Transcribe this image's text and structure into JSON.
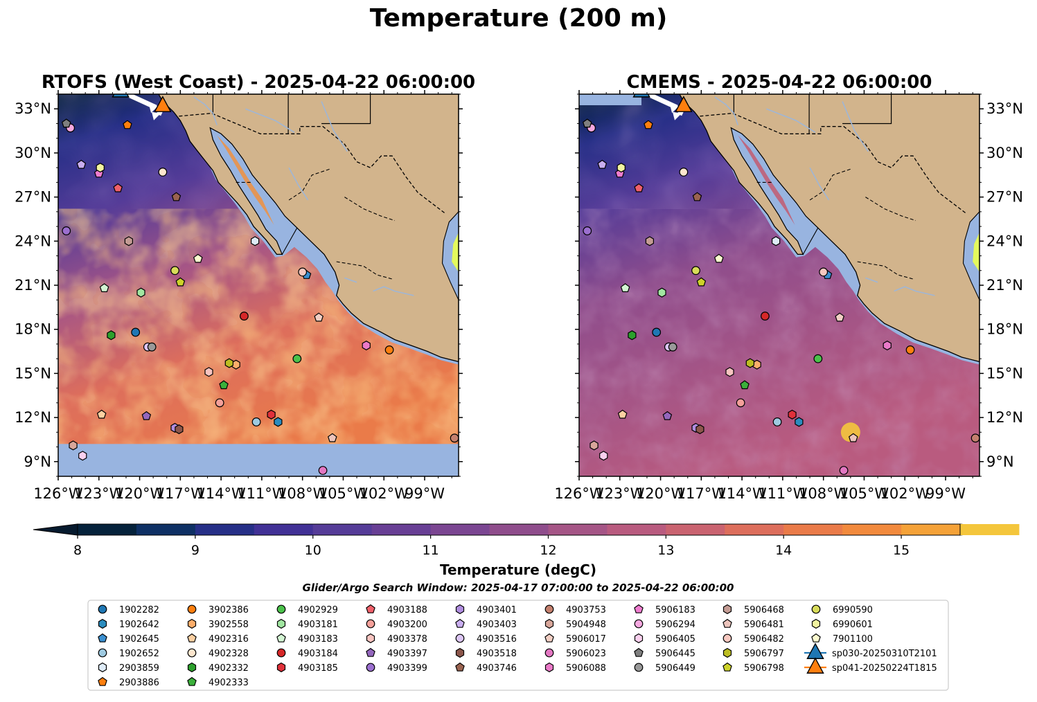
{
  "figure": {
    "title": "Temperature (200 m)",
    "search_window": "Glider/Argo Search Window: 2025-04-17 07:00:00 to 2025-04-22 06:00:00"
  },
  "chart_data": {
    "type": "heatmap",
    "panels": [
      {
        "title": "RTOFS (West Coast) - 2025-04-22 06:00:00",
        "model": "RTOFS",
        "has_no_data_band": true
      },
      {
        "title": "CMEMS - 2025-04-22 06:00:00",
        "model": "CMEMS",
        "has_no_data_band": false
      }
    ],
    "xlim": [
      -126,
      -96.5
    ],
    "ylim": [
      8,
      34
    ],
    "x_ticks": [
      {
        "v": -126,
        "label": "126°W"
      },
      {
        "v": -123,
        "label": "123°W"
      },
      {
        "v": -120,
        "label": "120°W"
      },
      {
        "v": -117,
        "label": "117°W"
      },
      {
        "v": -114,
        "label": "114°W"
      },
      {
        "v": -111,
        "label": "111°W"
      },
      {
        "v": -108,
        "label": "108°W"
      },
      {
        "v": -105,
        "label": "105°W"
      },
      {
        "v": -102,
        "label": "102°W"
      },
      {
        "v": -99,
        "label": "99°W"
      }
    ],
    "y_ticks": [
      {
        "v": 9,
        "label": "9°N"
      },
      {
        "v": 12,
        "label": "12°N"
      },
      {
        "v": 15,
        "label": "15°N"
      },
      {
        "v": 18,
        "label": "18°N"
      },
      {
        "v": 21,
        "label": "21°N"
      },
      {
        "v": 24,
        "label": "24°N"
      },
      {
        "v": 27,
        "label": "27°N"
      },
      {
        "v": 30,
        "label": "30°N"
      },
      {
        "v": 33,
        "label": "33°N"
      }
    ],
    "colorbar": {
      "label": "Temperature (degC)",
      "min": 8,
      "max": 15.5,
      "step": 0.5,
      "ticks": [
        8,
        9,
        10,
        11,
        12,
        13,
        14,
        15
      ],
      "colors": [
        "#05223b",
        "#0e3064",
        "#262f87",
        "#413196",
        "#553c98",
        "#683f95",
        "#7b4692",
        "#8f4d8c",
        "#a55586",
        "#b95b7f",
        "#ca6370",
        "#dd6e5c",
        "#ea7b49",
        "#f28a3d",
        "#f5a238",
        "#f4c63c"
      ],
      "extend_low_color": "#061a2e",
      "extend_high_color": "#e4f95c"
    },
    "land_color": "#d2b48c",
    "nodata_color": "#98b4e0",
    "gliders": [
      {
        "name": "sp030-20250310T2101",
        "color": "#1f77b4",
        "path_end": [
          -118.8,
          33.1
        ],
        "marker": [
          -121.4,
          34.2
        ]
      },
      {
        "name": "sp041-20250224T1815",
        "color": "#ff7f0e",
        "path_end": [
          -118.6,
          32.6
        ],
        "marker": [
          -118.3,
          33.2
        ]
      }
    ],
    "floats": [
      {
        "id": "1902282",
        "marker": "o",
        "color": "#1f77b4",
        "lon": -120.3,
        "lat": 17.8
      },
      {
        "id": "1902642",
        "marker": "h",
        "color": "#2b8cbe",
        "lon": -109.8,
        "lat": 11.7
      },
      {
        "id": "1902645",
        "marker": "p",
        "color": "#3a8fd0",
        "lon": -107.7,
        "lat": 21.7
      },
      {
        "id": "1902652",
        "marker": "o",
        "color": "#9ecae1",
        "lon": -111.4,
        "lat": 11.7
      },
      {
        "id": "2903859",
        "marker": "h",
        "color": "#deebf7",
        "lon": -111.5,
        "lat": 24.0
      },
      {
        "id": "2903886",
        "marker": "p",
        "color": "#ff7f0e",
        "lon": -120.9,
        "lat": 31.9
      },
      {
        "id": "3902386",
        "marker": "o",
        "color": "#ff7f0e",
        "lon": -101.6,
        "lat": 16.6
      },
      {
        "id": "3902558",
        "marker": "h",
        "color": "#fdae6b",
        "lon": -112.9,
        "lat": 15.6
      },
      {
        "id": "4902316",
        "marker": "p",
        "color": "#fdd0a2",
        "lon": -122.8,
        "lat": 12.2
      },
      {
        "id": "4902328",
        "marker": "o",
        "color": "#fee6ce",
        "lon": -118.3,
        "lat": 28.7
      },
      {
        "id": "4902332",
        "marker": "h",
        "color": "#2ca02c",
        "lon": -122.1,
        "lat": 17.6
      },
      {
        "id": "4902333",
        "marker": "p",
        "color": "#3bb03b",
        "lon": -113.8,
        "lat": 14.2
      },
      {
        "id": "4902929",
        "marker": "o",
        "color": "#4bc24b",
        "lon": -108.4,
        "lat": 16.0
      },
      {
        "id": "4903181",
        "marker": "h",
        "color": "#a1e6a1",
        "lon": -119.9,
        "lat": 20.5
      },
      {
        "id": "4903183",
        "marker": "p",
        "color": "#d3f5d3",
        "lon": -122.6,
        "lat": 20.8
      },
      {
        "id": "4903184",
        "marker": "o",
        "color": "#d62728",
        "lon": -112.3,
        "lat": 18.9
      },
      {
        "id": "4903185",
        "marker": "h",
        "color": "#e0303a",
        "lon": -110.3,
        "lat": 12.2
      },
      {
        "id": "4903188",
        "marker": "p",
        "color": "#f0606a",
        "lon": -121.6,
        "lat": 27.6
      },
      {
        "id": "4903200",
        "marker": "o",
        "color": "#f4a09a",
        "lon": -114.1,
        "lat": 13.0
      },
      {
        "id": "4903378",
        "marker": "h",
        "color": "#f8c4c0",
        "lon": -114.9,
        "lat": 15.1
      },
      {
        "id": "4903397",
        "marker": "p",
        "color": "#9467bd",
        "lon": -119.5,
        "lat": 12.1
      },
      {
        "id": "4903399",
        "marker": "o",
        "color": "#9b6fcf",
        "lon": -125.4,
        "lat": 24.7
      },
      {
        "id": "4903401",
        "marker": "h",
        "color": "#b18ee0",
        "lon": -117.4,
        "lat": 11.3
      },
      {
        "id": "4903403",
        "marker": "p",
        "color": "#c9aef0",
        "lon": -124.3,
        "lat": 29.2
      },
      {
        "id": "4903516",
        "marker": "o",
        "color": "#dcc6f5",
        "lon": -119.4,
        "lat": 16.8
      },
      {
        "id": "4903518",
        "marker": "h",
        "color": "#8c564b",
        "lon": -117.1,
        "lat": 11.2
      },
      {
        "id": "4903746",
        "marker": "p",
        "color": "#9a6350",
        "lon": -117.3,
        "lat": 27.0
      },
      {
        "id": "4903753",
        "marker": "o",
        "color": "#c4806e",
        "lon": -96.8,
        "lat": 10.6
      },
      {
        "id": "5904948",
        "marker": "h",
        "color": "#d8a69a",
        "lon": -124.9,
        "lat": 10.1
      },
      {
        "id": "5906017",
        "marker": "p",
        "color": "#f2cfc4",
        "lon": -106.8,
        "lat": 18.8
      },
      {
        "id": "5906023",
        "marker": "o",
        "color": "#e377c2",
        "lon": -106.5,
        "lat": 8.4
      },
      {
        "id": "5906088",
        "marker": "h",
        "color": "#ea79c8",
        "lon": -103.3,
        "lat": 16.9
      },
      {
        "id": "5906183",
        "marker": "p",
        "color": "#f07dd0",
        "lon": -123.0,
        "lat": 28.6
      },
      {
        "id": "5906294",
        "marker": "o",
        "color": "#f6a8e0",
        "lon": -125.1,
        "lat": 31.7
      },
      {
        "id": "5906405",
        "marker": "h",
        "color": "#fad0ee",
        "lon": -124.2,
        "lat": 9.4
      },
      {
        "id": "5906445",
        "marker": "p",
        "color": "#7f7f7f",
        "lon": -125.4,
        "lat": 32.0
      },
      {
        "id": "5906449",
        "marker": "o",
        "color": "#999999",
        "lon": -119.1,
        "lat": 16.8
      },
      {
        "id": "5906468",
        "marker": "h",
        "color": "#c49c94",
        "lon": -120.8,
        "lat": 24.0
      },
      {
        "id": "5906481",
        "marker": "p",
        "color": "#ecc4bc",
        "lon": -105.8,
        "lat": 10.6
      },
      {
        "id": "5906482",
        "marker": "o",
        "color": "#f7c8c0",
        "lon": -108.0,
        "lat": 21.9
      },
      {
        "id": "5906797",
        "marker": "h",
        "color": "#bcbd22",
        "lon": -113.4,
        "lat": 15.7
      },
      {
        "id": "5906798",
        "marker": "p",
        "color": "#cdd22a",
        "lon": -117.0,
        "lat": 21.2
      },
      {
        "id": "6990590",
        "marker": "o",
        "color": "#d8dc5a",
        "lon": -117.4,
        "lat": 22.0
      },
      {
        "id": "6990601",
        "marker": "h",
        "color": "#f2f4a0",
        "lon": -122.9,
        "lat": 29.0
      },
      {
        "id": "7901100",
        "marker": "p",
        "color": "#fdfccf",
        "lon": -115.7,
        "lat": 22.8
      }
    ]
  }
}
